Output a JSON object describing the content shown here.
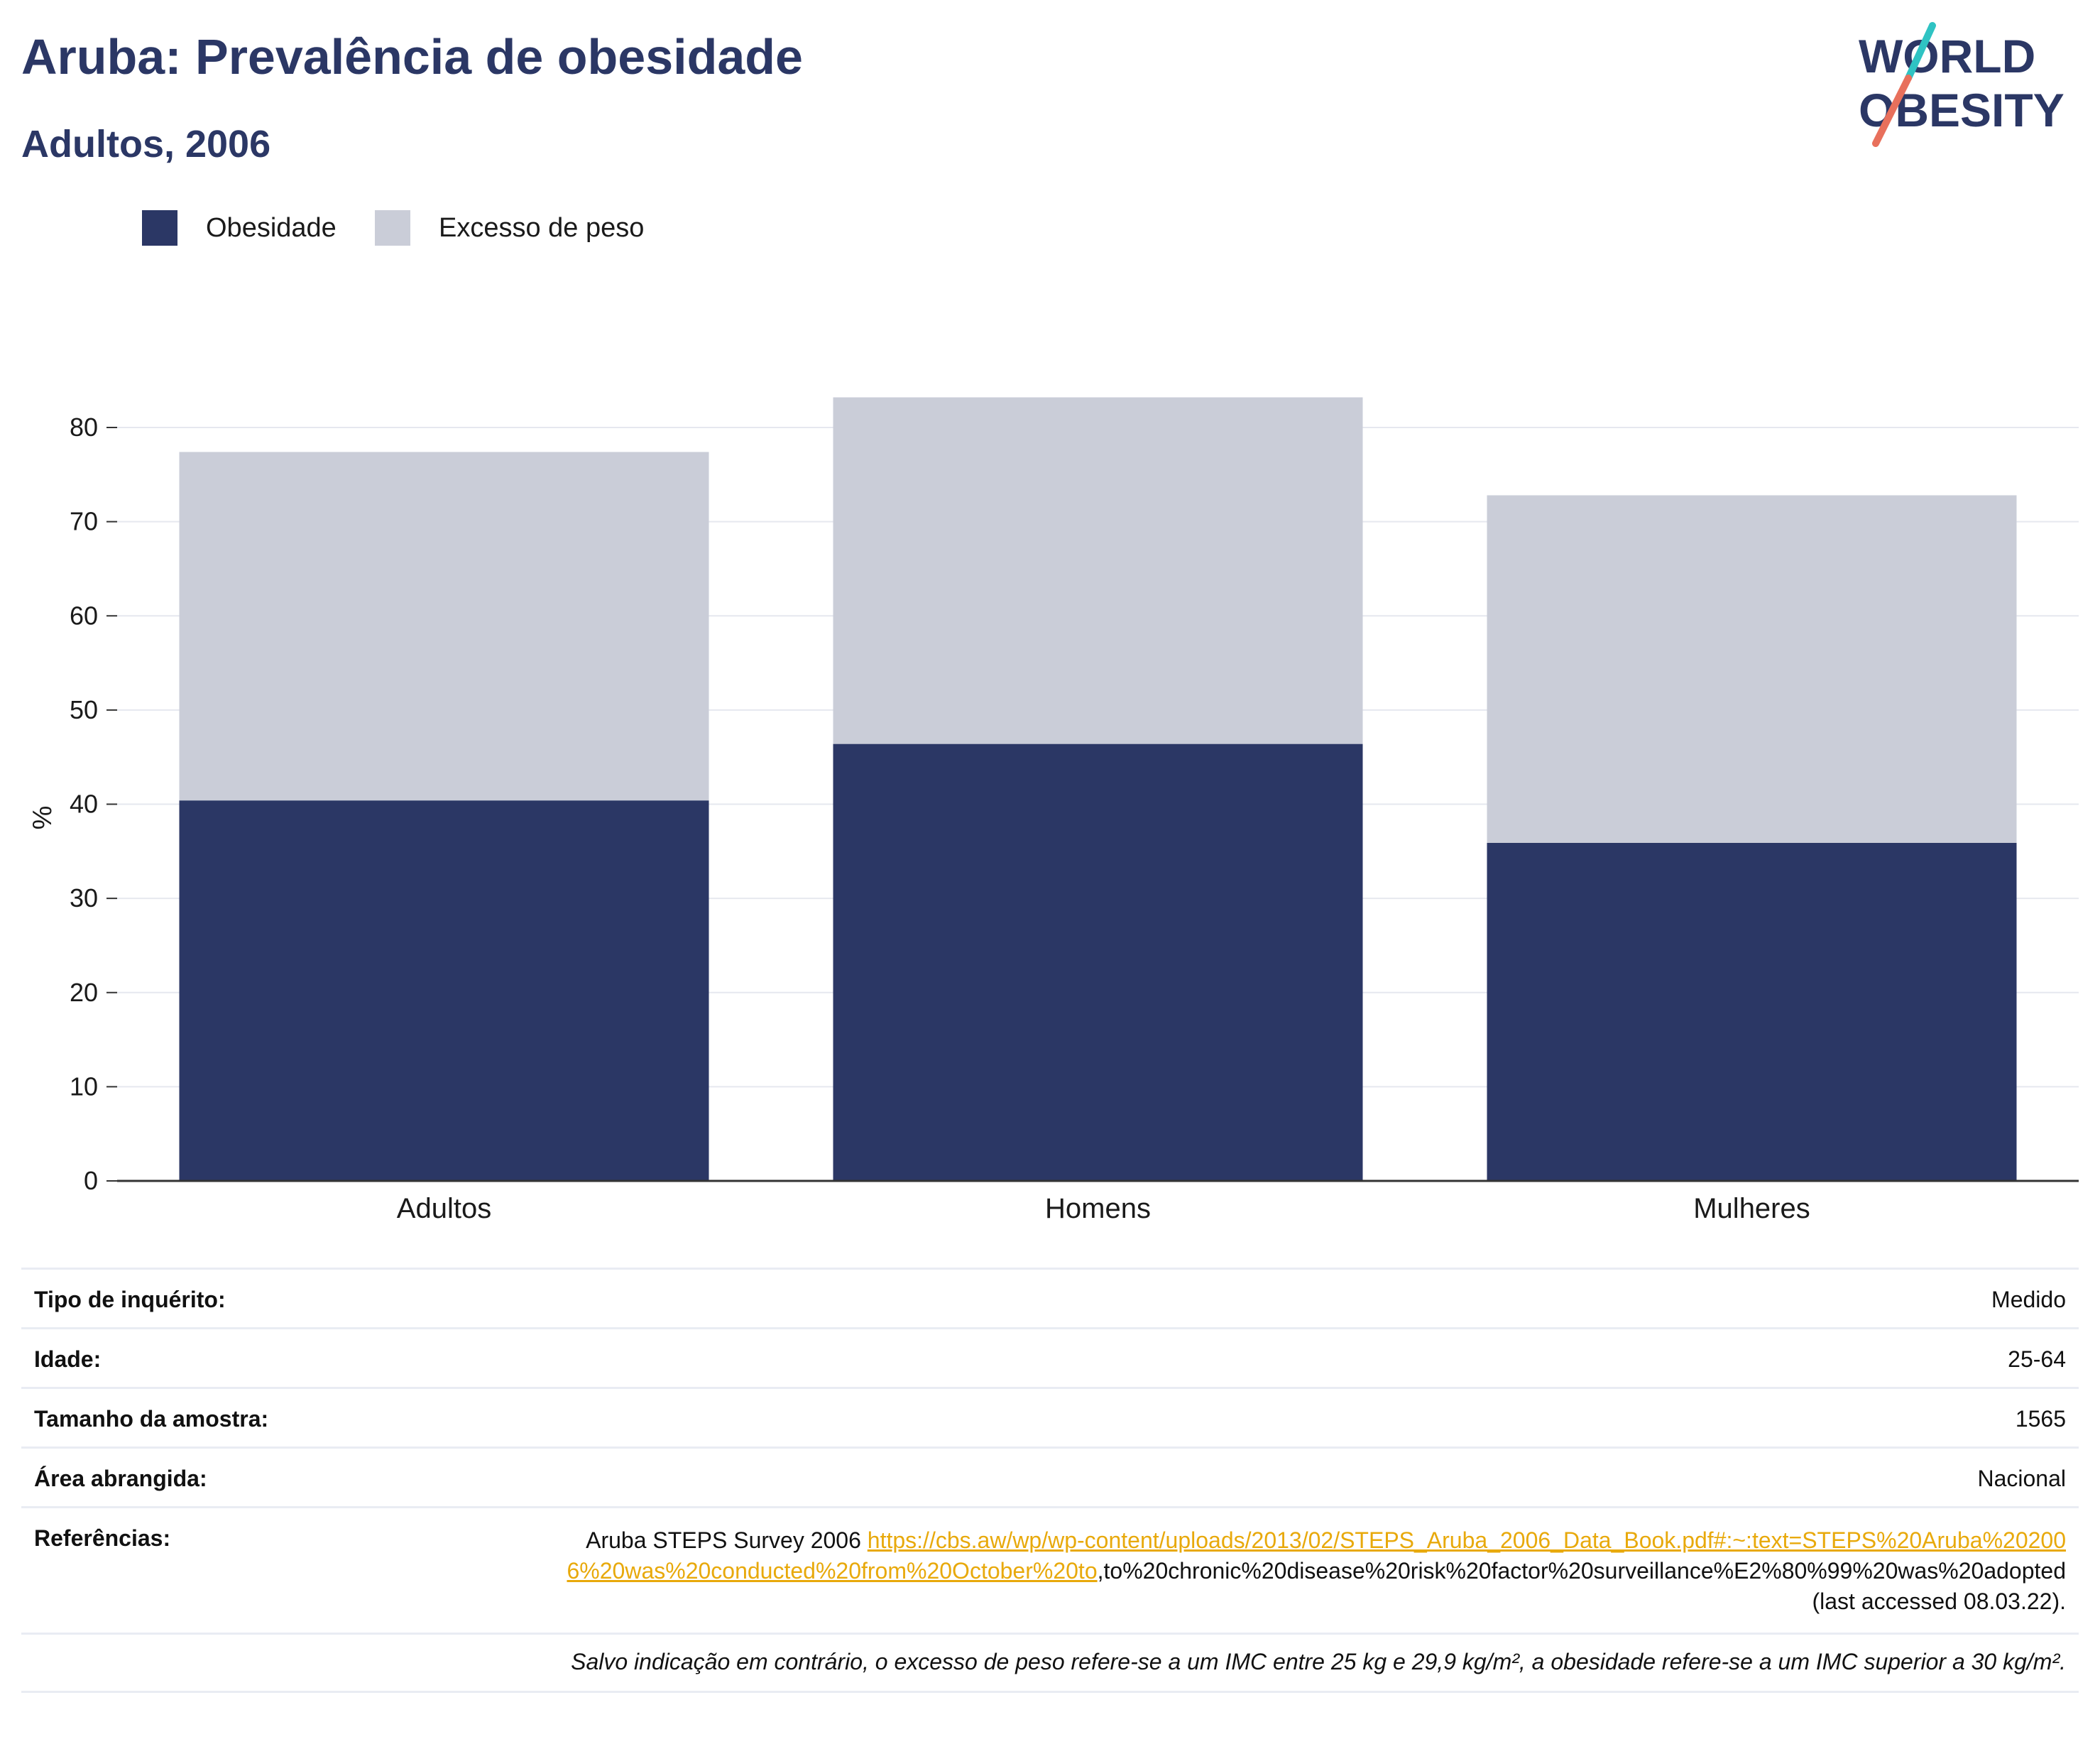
{
  "header": {
    "title": "Aruba: Prevalência de obesidade",
    "subtitle": "Adultos, 2006"
  },
  "logo": {
    "line1": "WORLD",
    "line2": "OBESITY",
    "colors": {
      "text": "#2b3765",
      "slash_teal": "#2fc3c3",
      "slash_coral": "#e8705c"
    }
  },
  "legend": {
    "items": [
      {
        "label": "Obesidade",
        "color": "#2b3765"
      },
      {
        "label": "Excesso de peso",
        "color": "#cacdd8"
      }
    ]
  },
  "chart_data": {
    "type": "bar",
    "stacked": true,
    "categories": [
      "Adultos",
      "Homens",
      "Mulheres"
    ],
    "series": [
      {
        "name": "Obesidade",
        "color": "#2b3765",
        "values": [
          40.4,
          46.4,
          35.9
        ]
      },
      {
        "name": "Excesso de peso",
        "color": "#cacdd8",
        "values": [
          37.0,
          36.8,
          36.9
        ]
      }
    ],
    "title": "",
    "xlabel": "",
    "ylabel": "%",
    "ylim": [
      0,
      80
    ],
    "yticks": [
      0,
      10,
      20,
      30,
      40,
      50,
      60,
      70,
      80
    ],
    "grid": true,
    "legend_position": "top-left"
  },
  "info": {
    "rows": [
      {
        "label": "Tipo de inquérito:",
        "value": "Medido"
      },
      {
        "label": "Idade:",
        "value": "25-64"
      },
      {
        "label": "Tamanho da amostra:",
        "value": "1565"
      },
      {
        "label": "Área abrangida:",
        "value": "Nacional"
      }
    ],
    "references": {
      "label": "Referências:",
      "prefix": "Aruba STEPS Survey 2006 ",
      "link": "https://cbs.aw/wp/wp-content/uploads/2013/02/STEPS_Aruba_2006_Data_Book.pdf#:~:text=STEPS%20Aruba%202006%20was%20conducted%20from%20October%20to",
      "suffix": ",to%20chronic%20disease%20risk%20factor%20surveillance%E2%80%99%20was%20adopted (last accessed 08.03.22)."
    },
    "footnote": "Salvo indicação em contrário, o excesso de peso refere-se a um IMC entre 25 kg e 29,9 kg/m², a obesidade refere-se a um IMC superior a 30 kg/m²."
  }
}
